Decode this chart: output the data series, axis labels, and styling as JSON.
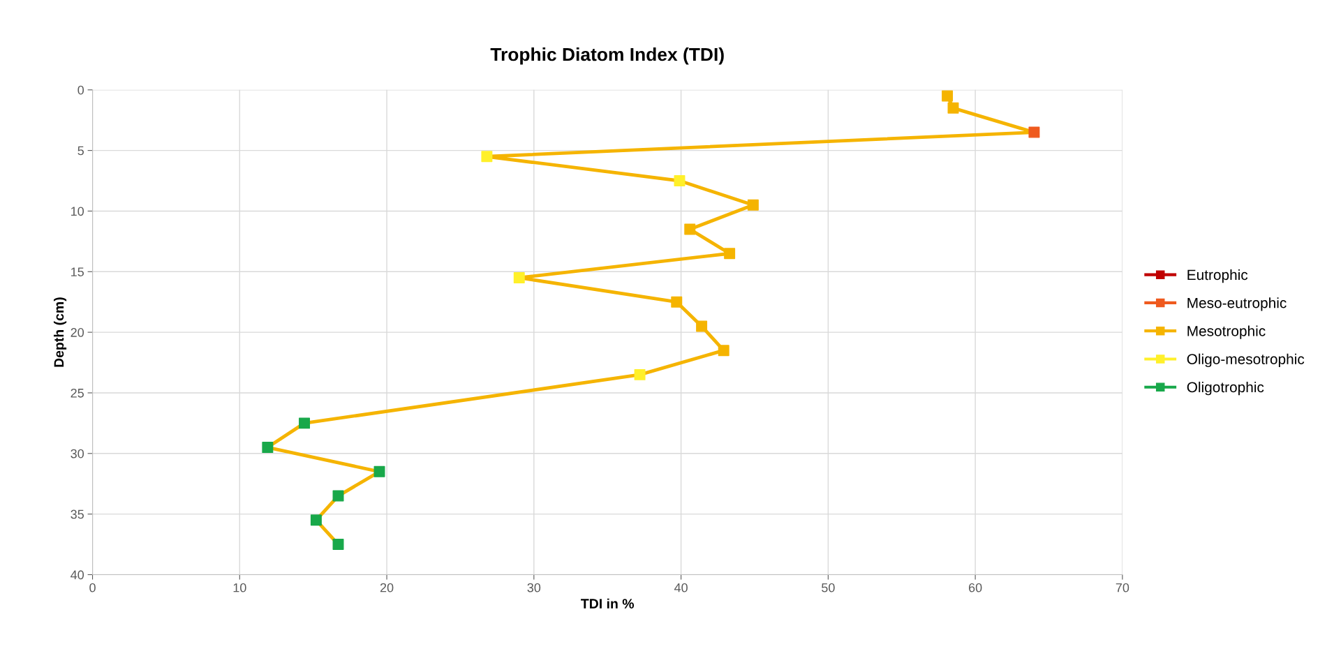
{
  "chart_data": {
    "type": "line",
    "title": "Trophic Diatom Index (TDI)",
    "xlabel": "TDI in %",
    "ylabel": "Depth (cm)",
    "xlim": [
      0,
      70
    ],
    "xticks": [
      0,
      10,
      20,
      30,
      40,
      50,
      60,
      70
    ],
    "ylim": [
      40,
      0
    ],
    "yticks": [
      0,
      5,
      10,
      15,
      20,
      25,
      30,
      35,
      40
    ],
    "grid": true,
    "legend": "right",
    "marker": "square",
    "series": [
      {
        "color": "#f5b400",
        "x": [
          58.1,
          58.5,
          64.0,
          26.8,
          39.9,
          44.9,
          40.6,
          43.3,
          29.0,
          39.7,
          41.4,
          42.9,
          37.2,
          14.4,
          11.9,
          19.5,
          16.7,
          15.2,
          16.7
        ],
        "values": [
          0.5,
          1.5,
          3.5,
          5.5,
          7.5,
          9.5,
          11.5,
          13.5,
          15.5,
          17.5,
          19.5,
          21.5,
          23.5,
          27.5,
          29.5,
          31.5,
          33.5,
          35.5,
          37.5
        ],
        "colors": [
          "#f5b400",
          "#f5b400",
          "#ef5a1e",
          "#fff02a",
          "#fff02a",
          "#f5b400",
          "#f5b400",
          "#f5b400",
          "#fff02a",
          "#f5b400",
          "#f5b400",
          "#f5b400",
          "#fff02a",
          "#18a84a",
          "#18a84a",
          "#18a84a",
          "#18a84a",
          "#18a84a",
          "#18a84a"
        ]
      },
      {
        "name": "Eutrophic",
        "color": "#c00000"
      },
      {
        "name": "Meso-eutrophic",
        "color": "#ef5a1e"
      },
      {
        "name": "Mesotrophic",
        "color": "#f5b400"
      },
      {
        "name": "Oligo-mesotrophic",
        "color": "#fff02a"
      },
      {
        "name": "Oligotrophic",
        "color": "#18a84a"
      }
    ]
  }
}
